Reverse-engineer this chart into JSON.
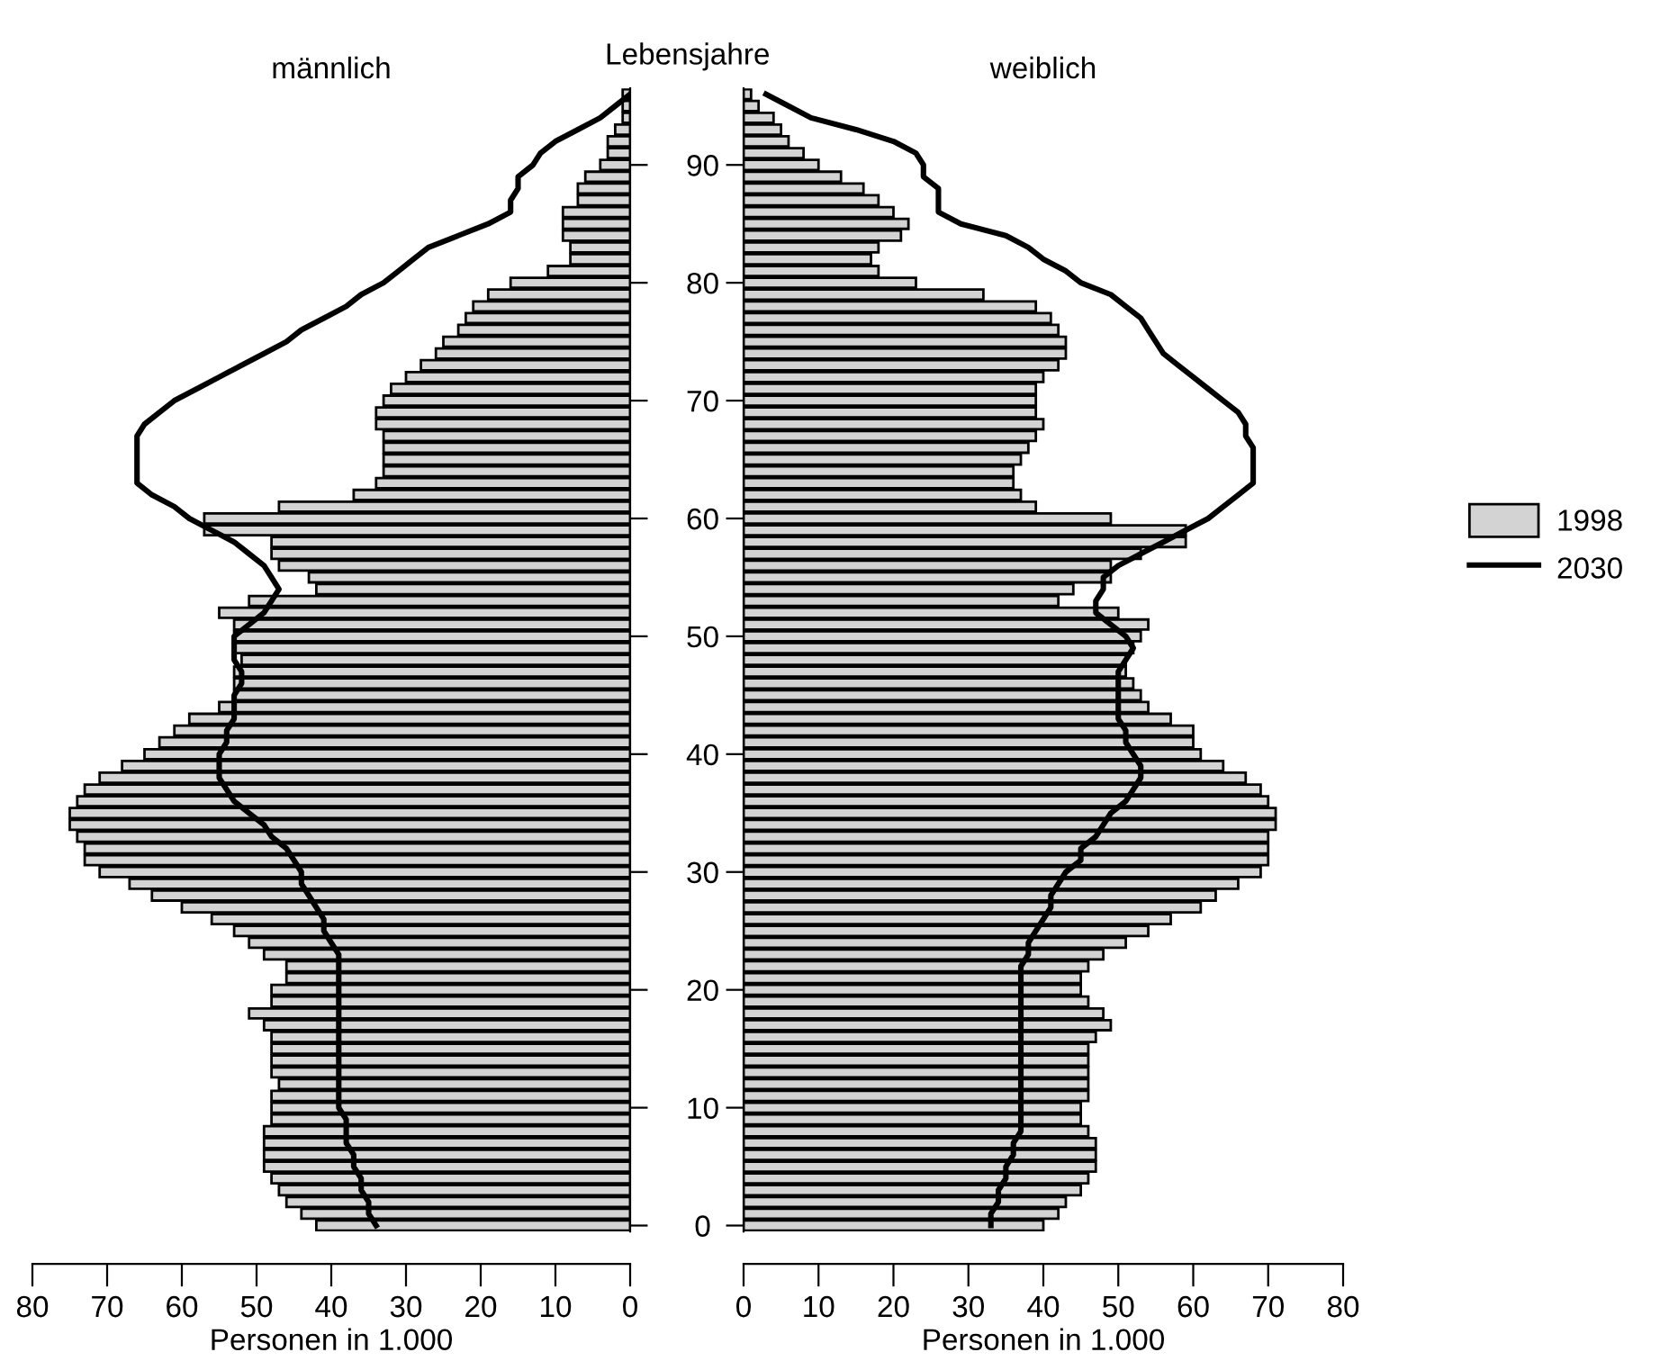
{
  "chart_data": [
    {
      "type": "bar",
      "orientation": "horizontal",
      "title": "männlich",
      "ylabel": "Lebensjahre",
      "xlabel": "Personen in 1.000",
      "categories": [
        null,
        null,
        null,
        null,
        null,
        null,
        "90",
        null,
        null,
        null,
        null,
        null,
        null,
        null,
        null,
        null,
        "80",
        null,
        null,
        null,
        null,
        null,
        null,
        null,
        null,
        null,
        "70",
        null,
        null,
        null,
        null,
        null,
        null,
        null,
        null,
        null,
        "60",
        null,
        null,
        null,
        null,
        null,
        null,
        null,
        null,
        null,
        "50",
        null,
        null,
        null,
        null,
        null,
        null,
        null,
        null,
        null,
        "40",
        null,
        null,
        null,
        null,
        null,
        null,
        null,
        null,
        null,
        "30",
        null,
        null,
        null,
        null,
        null,
        null,
        null,
        null,
        null,
        "20",
        null,
        null,
        null,
        null,
        null,
        null,
        null,
        null,
        null,
        "10",
        null,
        null,
        null,
        null,
        null,
        null,
        null,
        null,
        null,
        "0"
      ],
      "xlim": [
        80,
        0
      ],
      "xticks": [
        80,
        70,
        60,
        50,
        40,
        30,
        20,
        10,
        0
      ],
      "legend": "right",
      "series": [
        {
          "name": "1998",
          "color": "#d3d3d3",
          "values": [
            1,
            1,
            1,
            2,
            3,
            3,
            4,
            6,
            7,
            7,
            9,
            9,
            9,
            8,
            8,
            11,
            16,
            19,
            21,
            22,
            23,
            25,
            26,
            28,
            30,
            32,
            33,
            34,
            34,
            33,
            33,
            33,
            33,
            34,
            37,
            47,
            57,
            57,
            48,
            48,
            47,
            43,
            42,
            51,
            55,
            53,
            53,
            53,
            52,
            53,
            53,
            53,
            55,
            59,
            61,
            63,
            65,
            68,
            71,
            73,
            74,
            75,
            75,
            74,
            73,
            73,
            71,
            67,
            64,
            60,
            56,
            53,
            51,
            49,
            46,
            46,
            48,
            48,
            51,
            49,
            48,
            48,
            48,
            48,
            47,
            48,
            48,
            48,
            49,
            49,
            49,
            49,
            48,
            47,
            46,
            44,
            42
          ]
        },
        {
          "name": "2030",
          "type": "line",
          "color": "#000000",
          "values": [
            0,
            2,
            4,
            7,
            10,
            12,
            13,
            15,
            15,
            16,
            16,
            19,
            23,
            27,
            29,
            31,
            33,
            36,
            38,
            41,
            44,
            46,
            49,
            52,
            55,
            58,
            61,
            63,
            65,
            66,
            66,
            66,
            66,
            66,
            64,
            61,
            59,
            56,
            53,
            51,
            49,
            48,
            47,
            48,
            49,
            51,
            53,
            53,
            53,
            52,
            52,
            53,
            53,
            53,
            54,
            54,
            55,
            55,
            55,
            54,
            53,
            51,
            49,
            48,
            46,
            45,
            44,
            44,
            43,
            42,
            41,
            41,
            40,
            39,
            39,
            39,
            39,
            39,
            39,
            39,
            39,
            39,
            39,
            39,
            39,
            39,
            39,
            38,
            38,
            38,
            37,
            37,
            36,
            36,
            35,
            35,
            34
          ]
        }
      ]
    },
    {
      "type": "bar",
      "orientation": "horizontal",
      "title": "weiblich",
      "xlabel": "Personen in 1.000",
      "tick_labels": "x",
      "categories": [
        null,
        null,
        null,
        null,
        null,
        null,
        "90",
        null,
        null,
        null,
        null,
        null,
        null,
        null,
        null,
        null,
        "80",
        null,
        null,
        null,
        null,
        null,
        null,
        null,
        null,
        null,
        "70",
        null,
        null,
        null,
        null,
        null,
        null,
        null,
        null,
        null,
        "60",
        null,
        null,
        null,
        null,
        null,
        null,
        null,
        null,
        null,
        "50",
        null,
        null,
        null,
        null,
        null,
        null,
        null,
        null,
        null,
        "40",
        null,
        null,
        null,
        null,
        null,
        null,
        null,
        null,
        null,
        "30",
        null,
        null,
        null,
        null,
        null,
        null,
        null,
        null,
        null,
        "20",
        null,
        null,
        null,
        null,
        null,
        null,
        null,
        null,
        null,
        "10",
        null,
        null,
        null,
        null,
        null,
        null,
        null,
        null,
        null,
        "0"
      ],
      "xlim": [
        0,
        80
      ],
      "xticks": [
        0,
        10,
        20,
        30,
        40,
        50,
        60,
        70,
        80
      ],
      "legend": "right",
      "series": [
        {
          "name": "1998",
          "color": "#d3d3d3",
          "values": [
            1,
            2,
            4,
            5,
            6,
            8,
            10,
            13,
            16,
            18,
            20,
            22,
            21,
            18,
            17,
            18,
            23,
            32,
            39,
            41,
            42,
            43,
            43,
            42,
            40,
            39,
            39,
            39,
            40,
            39,
            38,
            37,
            36,
            36,
            37,
            39,
            49,
            59,
            59,
            53,
            49,
            49,
            44,
            42,
            50,
            54,
            53,
            52,
            51,
            51,
            52,
            53,
            54,
            57,
            60,
            60,
            61,
            64,
            67,
            69,
            70,
            71,
            71,
            70,
            70,
            70,
            69,
            66,
            63,
            61,
            57,
            54,
            51,
            48,
            46,
            45,
            45,
            46,
            48,
            49,
            47,
            46,
            46,
            46,
            46,
            46,
            45,
            45,
            46,
            47,
            47,
            47,
            46,
            45,
            43,
            42,
            40
          ]
        },
        {
          "name": "2030",
          "type": "line",
          "color": "#000000",
          "values": [
            3,
            6,
            9,
            15,
            20,
            23,
            24,
            24,
            26,
            26,
            26,
            29,
            35,
            38,
            40,
            43,
            45,
            49,
            51,
            53,
            54,
            55,
            56,
            58,
            60,
            62,
            64,
            66,
            67,
            67,
            68,
            68,
            68,
            68,
            66,
            64,
            62,
            59,
            56,
            53,
            50,
            48,
            48,
            47,
            47,
            49,
            51,
            52,
            51,
            50,
            50,
            50,
            50,
            50,
            51,
            51,
            52,
            53,
            53,
            52,
            51,
            49,
            48,
            47,
            45,
            45,
            43,
            42,
            41,
            41,
            40,
            39,
            38,
            38,
            37,
            37,
            37,
            37,
            37,
            37,
            37,
            37,
            37,
            37,
            37,
            37,
            37,
            37,
            37,
            36,
            36,
            35,
            35,
            34,
            34,
            33,
            33
          ]
        }
      ]
    }
  ]
}
